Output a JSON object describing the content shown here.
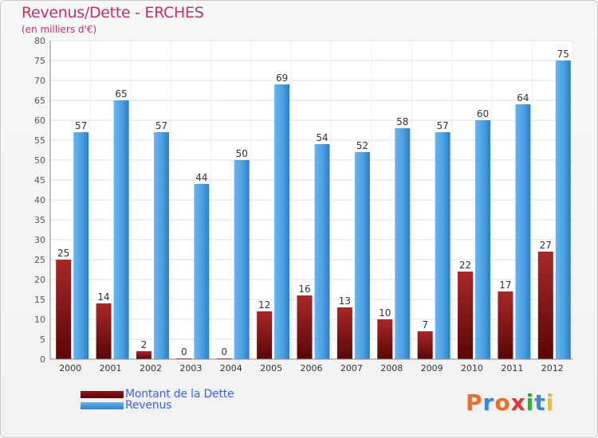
{
  "chart_data": {
    "type": "bar",
    "title": "Revenus/Dette - ERCHES",
    "subtitle": "(en milliers d'€)",
    "xlabel": "",
    "ylabel": "",
    "ylim": [
      0,
      80
    ],
    "ytick_step": 5,
    "grid": true,
    "legend_position": "bottom-left",
    "categories": [
      "2000",
      "2001",
      "2002",
      "2003",
      "2004",
      "2005",
      "2006",
      "2007",
      "2008",
      "2009",
      "2010",
      "2011",
      "2012"
    ],
    "series": [
      {
        "name": "Montant de la Dette",
        "color": "#8b1818",
        "values": [
          25,
          14,
          2,
          0,
          0,
          12,
          16,
          13,
          10,
          7,
          22,
          17,
          27
        ]
      },
      {
        "name": "Revenus",
        "color": "#4a9de0",
        "values": [
          57,
          65,
          57,
          44,
          50,
          69,
          54,
          52,
          58,
          57,
          60,
          64,
          75
        ]
      }
    ]
  },
  "logo": {
    "text": "Proxiti",
    "colors": [
      "#e8702a",
      "#3a8ad8",
      "#e8702a",
      "#d83a3a",
      "#3aa83a",
      "#3a8ad8",
      "#e8c02a"
    ]
  }
}
